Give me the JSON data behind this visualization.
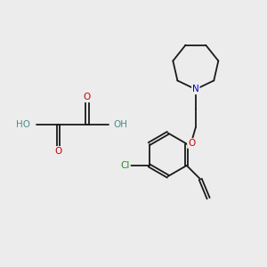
{
  "background_color": "#ececec",
  "line_color": "#1a1a1a",
  "atom_colors": {
    "O": "#cc0000",
    "N": "#0000cc",
    "Cl": "#228b22",
    "H": "#4a8f8f",
    "C": "#1a1a1a"
  },
  "figsize": [
    3.0,
    3.0
  ],
  "dpi": 100
}
